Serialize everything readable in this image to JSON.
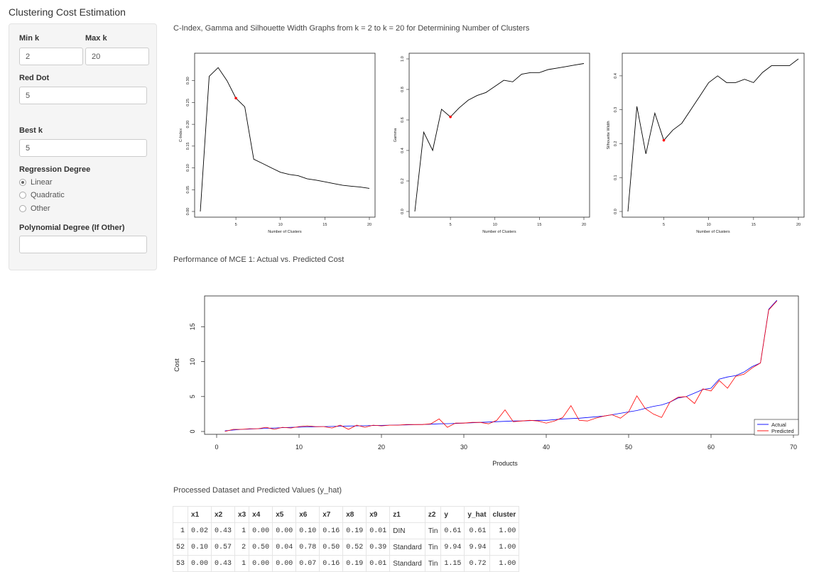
{
  "app": {
    "title": "Clustering Cost Estimation"
  },
  "sidebar": {
    "min_k": {
      "label": "Min k",
      "value": "2"
    },
    "max_k": {
      "label": "Max k",
      "value": "20"
    },
    "red_dot": {
      "label": "Red Dot",
      "value": "5"
    },
    "best_k": {
      "label": "Best k",
      "value": "5"
    },
    "regression": {
      "label": "Regression Degree",
      "options": [
        "Linear",
        "Quadratic",
        "Other"
      ],
      "selected": "Linear"
    },
    "poly_degree": {
      "label": "Polynomial Degree (If Other)",
      "value": ""
    }
  },
  "main": {
    "graphs_title": "C-Index, Gamma and Silhouette Width Graphs from k = 2 to k = 20 for Determining Number of Clusters",
    "performance_title": "Performance of MCE 1: Actual vs. Predicted Cost",
    "table_title": "Processed Dataset and Predicted Values (y_hat)"
  },
  "colors": {
    "red_dot": "#ff0000",
    "actual": "#0000ff",
    "predicted": "#ff0000"
  },
  "chart_data": [
    {
      "type": "line",
      "xlabel": "Number of Clusters",
      "ylabel": "C-Index",
      "xlim": [
        1,
        20
      ],
      "ylim": [
        0,
        0.35
      ],
      "xticks": [
        5,
        10,
        15,
        20
      ],
      "yticks": [
        0.0,
        0.05,
        0.1,
        0.15,
        0.2,
        0.25,
        0.3
      ],
      "ytick_labels": [
        "0.00",
        "0.05",
        "0.10",
        "0.15",
        "0.20",
        "0.25",
        "0.30"
      ],
      "x": [
        1,
        2,
        3,
        4,
        5,
        6,
        7,
        8,
        9,
        10,
        11,
        12,
        13,
        14,
        15,
        16,
        17,
        18,
        19,
        20
      ],
      "values": [
        0.0,
        0.31,
        0.33,
        0.3,
        0.26,
        0.24,
        0.12,
        0.11,
        0.1,
        0.09,
        0.085,
        0.082,
        0.075,
        0.072,
        0.068,
        0.064,
        0.06,
        0.058,
        0.056,
        0.053
      ],
      "highlight": {
        "x": 5,
        "y": 0.26
      }
    },
    {
      "type": "line",
      "xlabel": "Number of Clusters",
      "ylabel": "Gamma",
      "xlim": [
        1,
        20
      ],
      "ylim": [
        0,
        1.0
      ],
      "xticks": [
        5,
        10,
        15,
        20
      ],
      "yticks": [
        0.0,
        0.2,
        0.4,
        0.6,
        0.8,
        1.0
      ],
      "ytick_labels": [
        "0.0",
        "0.2",
        "0.4",
        "0.6",
        "0.8",
        "1.0"
      ],
      "x": [
        1,
        2,
        3,
        4,
        5,
        6,
        7,
        8,
        9,
        10,
        11,
        12,
        13,
        14,
        15,
        16,
        17,
        18,
        19,
        20
      ],
      "values": [
        0.0,
        0.52,
        0.4,
        0.67,
        0.62,
        0.68,
        0.73,
        0.76,
        0.78,
        0.82,
        0.86,
        0.85,
        0.9,
        0.91,
        0.91,
        0.93,
        0.94,
        0.95,
        0.96,
        0.97
      ],
      "highlight": {
        "x": 5,
        "y": 0.62
      }
    },
    {
      "type": "line",
      "xlabel": "Number of Clusters",
      "ylabel": "Silhouette Width",
      "xlim": [
        1,
        20
      ],
      "ylim": [
        0,
        0.45
      ],
      "xticks": [
        5,
        10,
        15,
        20
      ],
      "yticks": [
        0.0,
        0.1,
        0.2,
        0.3,
        0.4
      ],
      "ytick_labels": [
        "0.0",
        "0.1",
        "0.2",
        "0.3",
        "0.4"
      ],
      "x": [
        1,
        2,
        3,
        4,
        5,
        6,
        7,
        8,
        9,
        10,
        11,
        12,
        13,
        14,
        15,
        16,
        17,
        18,
        19,
        20
      ],
      "values": [
        0.0,
        0.31,
        0.17,
        0.29,
        0.21,
        0.24,
        0.26,
        0.3,
        0.34,
        0.38,
        0.4,
        0.38,
        0.38,
        0.39,
        0.38,
        0.41,
        0.43,
        0.43,
        0.43,
        0.45
      ],
      "highlight": {
        "x": 5,
        "y": 0.21
      }
    },
    {
      "type": "line",
      "xlabel": "Products",
      "ylabel": "Cost",
      "xlim": [
        0,
        70
      ],
      "ylim": [
        0,
        19
      ],
      "xticks": [
        0,
        10,
        20,
        30,
        40,
        50,
        60,
        70
      ],
      "yticks": [
        0,
        5,
        10,
        15
      ],
      "legend": "bottom-right",
      "x": [
        1,
        2,
        3,
        4,
        5,
        6,
        7,
        8,
        9,
        10,
        11,
        12,
        13,
        14,
        15,
        16,
        17,
        18,
        19,
        20,
        21,
        22,
        23,
        24,
        25,
        26,
        27,
        28,
        29,
        30,
        31,
        32,
        33,
        34,
        35,
        36,
        37,
        38,
        39,
        40,
        41,
        42,
        43,
        44,
        45,
        46,
        47,
        48,
        49,
        50,
        51,
        52,
        53,
        54,
        55,
        56,
        57,
        58,
        59,
        60,
        61,
        62,
        63,
        64,
        65,
        66,
        67,
        68
      ],
      "series": [
        {
          "name": "Actual",
          "values": [
            0.1,
            0.2,
            0.3,
            0.35,
            0.4,
            0.45,
            0.5,
            0.55,
            0.6,
            0.62,
            0.65,
            0.68,
            0.7,
            0.72,
            0.75,
            0.78,
            0.8,
            0.82,
            0.85,
            0.87,
            0.9,
            0.92,
            0.95,
            0.98,
            1.0,
            1.05,
            1.1,
            1.12,
            1.15,
            1.2,
            1.25,
            1.3,
            1.35,
            1.4,
            1.45,
            1.5,
            1.5,
            1.55,
            1.6,
            1.6,
            1.7,
            1.8,
            1.85,
            1.9,
            2.0,
            2.1,
            2.2,
            2.4,
            2.6,
            2.8,
            3.0,
            3.3,
            3.6,
            3.8,
            4.2,
            4.8,
            5.0,
            5.5,
            6.0,
            6.2,
            7.5,
            7.8,
            8.0,
            8.5,
            9.3,
            9.8,
            17.5,
            18.8
          ]
        },
        {
          "name": "Predicted",
          "values": [
            0.0,
            0.3,
            0.3,
            0.4,
            0.4,
            0.6,
            0.3,
            0.6,
            0.5,
            0.7,
            0.8,
            0.7,
            0.7,
            0.5,
            0.9,
            0.3,
            0.9,
            0.6,
            0.9,
            0.8,
            0.9,
            0.9,
            1.0,
            1.0,
            1.0,
            1.1,
            1.8,
            0.6,
            1.2,
            1.2,
            1.3,
            1.3,
            1.1,
            1.6,
            3.1,
            1.4,
            1.5,
            1.6,
            1.5,
            1.2,
            1.5,
            2.0,
            3.7,
            1.6,
            1.5,
            1.9,
            2.2,
            2.4,
            1.9,
            2.8,
            5.1,
            3.3,
            2.5,
            2.0,
            4.2,
            4.9,
            5.0,
            4.0,
            6.1,
            5.8,
            7.3,
            6.2,
            7.9,
            8.2,
            9.1,
            9.8,
            17.4,
            18.7
          ]
        }
      ]
    }
  ],
  "table": {
    "columns": [
      "",
      "x1",
      "x2",
      "x3",
      "x4",
      "x5",
      "x6",
      "x7",
      "x8",
      "x9",
      "z1",
      "z2",
      "y",
      "y_hat",
      "cluster"
    ],
    "rows": [
      [
        "1",
        "0.02",
        "0.43",
        "1",
        "0.00",
        "0.00",
        "0.10",
        "0.16",
        "0.19",
        "0.01",
        "DIN",
        "Tin",
        "0.61",
        "0.61",
        "1.00"
      ],
      [
        "52",
        "0.10",
        "0.57",
        "2",
        "0.50",
        "0.04",
        "0.78",
        "0.50",
        "0.52",
        "0.39",
        "Standard",
        "Tin",
        "9.94",
        "9.94",
        "1.00"
      ],
      [
        "53",
        "0.00",
        "0.43",
        "1",
        "0.00",
        "0.00",
        "0.07",
        "0.16",
        "0.19",
        "0.01",
        "Standard",
        "Tin",
        "1.15",
        "0.72",
        "1.00"
      ]
    ]
  }
}
